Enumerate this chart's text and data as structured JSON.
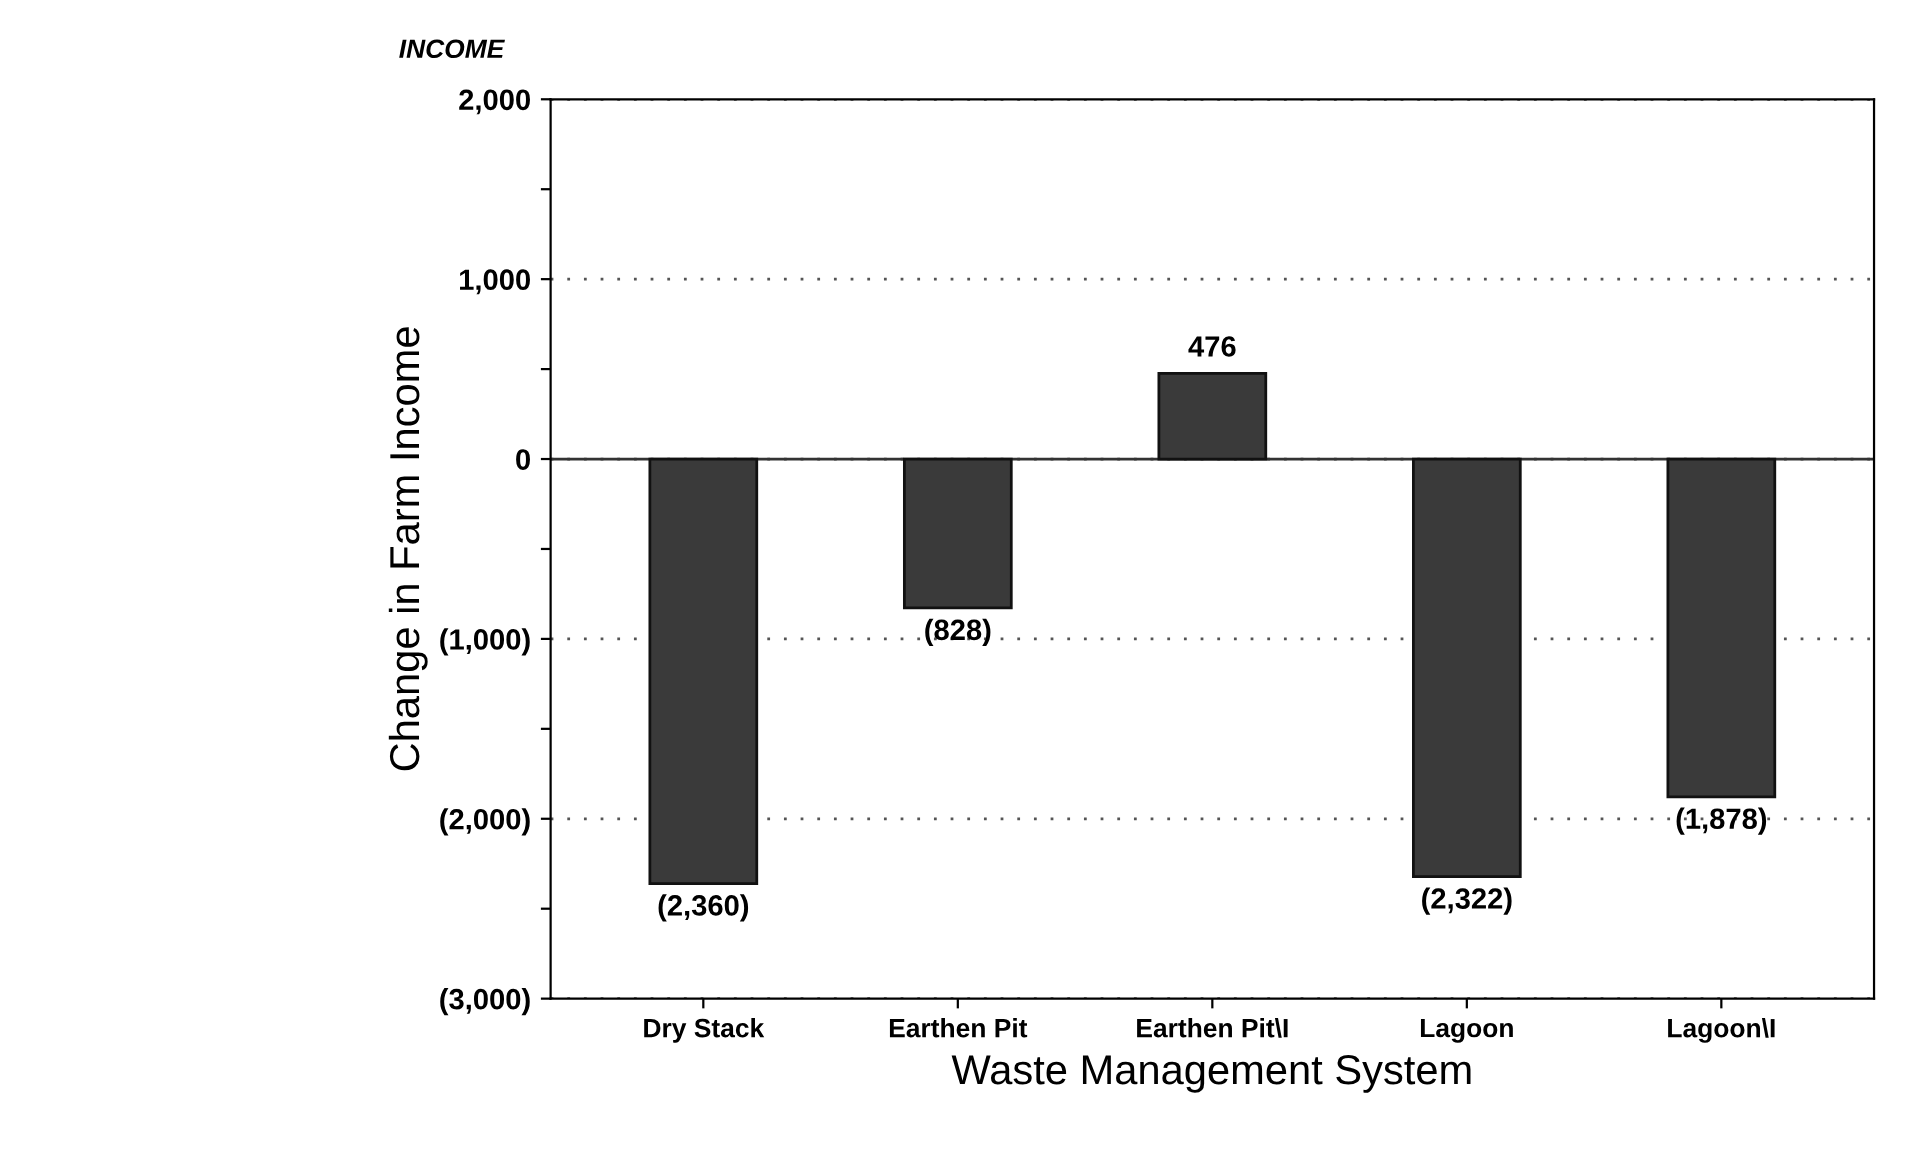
{
  "chart_data": {
    "type": "bar",
    "xlabel": "Waste Management System",
    "ylabel": "Change in Farm Income",
    "annotations": [
      "INCOME"
    ],
    "categories": [
      "Dry Stack",
      "Earthen Pit",
      "Earthen Pit\\I",
      "Lagoon",
      "Lagoon\\I"
    ],
    "values": [
      -2360,
      -828,
      476,
      -2322,
      -1878
    ],
    "value_labels": [
      "(2,360)",
      "(828)",
      "476",
      "(2,322)",
      "(1,878)"
    ],
    "color": "#3a3a3a",
    "ylim": [
      -3000,
      2000
    ],
    "yticks": [
      {
        "value": -3000,
        "label": "(3,000)"
      },
      {
        "value": -2500,
        "label": null
      },
      {
        "value": -2000,
        "label": "(2,000)"
      },
      {
        "value": -1500,
        "label": null
      },
      {
        "value": -1000,
        "label": "(1,000)"
      },
      {
        "value": -500,
        "label": null
      },
      0,
      {
        "value": 500,
        "label": null
      },
      {
        "value": 1000,
        "label": "1,000"
      },
      {
        "value": 1500,
        "label": null
      },
      {
        "value": 2000,
        "label": "2,000"
      }
    ],
    "ref_lines": [
      {
        "axis": "y",
        "value": 0,
        "color": "#333333",
        "line_style": "solid"
      }
    ],
    "grid": "y",
    "legend": false
  }
}
